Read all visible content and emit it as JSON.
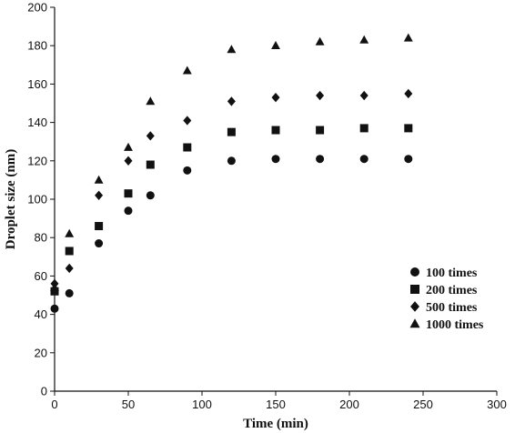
{
  "chart_data": {
    "type": "scatter",
    "xlabel": "Time (min)",
    "ylabel": "Droplet size (nm)",
    "xlim": [
      0,
      300
    ],
    "ylim": [
      0,
      200
    ],
    "x_ticks": [
      0,
      50,
      100,
      150,
      200,
      250,
      300
    ],
    "y_ticks": [
      0,
      20,
      40,
      60,
      80,
      100,
      120,
      140,
      160,
      180,
      200
    ],
    "grid": false,
    "legend_position": "right",
    "series": [
      {
        "name": "100 times",
        "marker": "circle",
        "x": [
          0,
          10,
          30,
          50,
          65,
          90,
          120,
          150,
          180,
          210,
          240
        ],
        "y": [
          43,
          51,
          77,
          94,
          102,
          115,
          120,
          121,
          121,
          121,
          121
        ]
      },
      {
        "name": "200 times",
        "marker": "square",
        "x": [
          0,
          10,
          30,
          50,
          65,
          90,
          120,
          150,
          180,
          210,
          240
        ],
        "y": [
          52,
          73,
          86,
          103,
          118,
          127,
          135,
          136,
          136,
          137,
          137
        ]
      },
      {
        "name": "500 times",
        "marker": "diamond",
        "x": [
          0,
          10,
          30,
          50,
          65,
          90,
          120,
          150,
          180,
          210,
          240
        ],
        "y": [
          56,
          64,
          102,
          120,
          133,
          141,
          151,
          153,
          154,
          154,
          155
        ]
      },
      {
        "name": "1000 times",
        "marker": "triangle",
        "x": [
          0,
          10,
          30,
          50,
          65,
          90,
          120,
          150,
          180,
          210,
          240
        ],
        "y": [
          54,
          82,
          110,
          127,
          151,
          167,
          178,
          180,
          182,
          183,
          184
        ]
      }
    ]
  }
}
